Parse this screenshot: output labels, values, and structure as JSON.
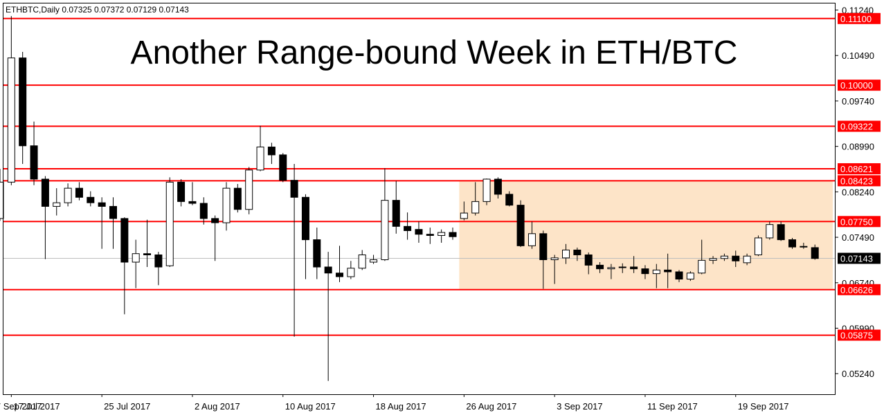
{
  "colors": {
    "level_line": "#ff0000",
    "range_box": "#fde4c8",
    "current_badge": "#000000",
    "candle_up_fill": "#ffffff",
    "candle_down_fill": "#000000",
    "candle_stroke": "#000000"
  },
  "chart_data": {
    "type": "candlestick",
    "symbol_info": "ETHBTC,Daily  0.07325 0.07372 0.07129 0.07143",
    "title": "Another Range-bound Week in ETH/BTC",
    "ylim": [
      0.049,
      0.1136
    ],
    "y_ticks": [
      "0.11240",
      "0.10490",
      "0.09740",
      "0.08990",
      "0.08240",
      "0.07490",
      "0.06740",
      "0.05990",
      "0.05240"
    ],
    "x_tick_labels": [
      "17 Jul 2017",
      "25 Jul 2017",
      "2 Aug 2017",
      "10 Aug 2017",
      "18 Aug 2017",
      "26 Aug 2017",
      "3 Sep 2017",
      "11 Sep 2017",
      "19 Sep 2017",
      "27 Sep 2017"
    ],
    "levels": [
      "0.11100",
      "0.10000",
      "0.09322",
      "0.08621",
      "0.08423",
      "0.07750",
      "0.06626",
      "0.05875"
    ],
    "current_price": "0.07143",
    "range_box": {
      "from": "26 Aug 2017",
      "to": "27 Sep 2017",
      "low": 0.0662,
      "high": 0.0843
    },
    "candles": [
      {
        "date": "16 Jul 2017",
        "o": 0.078,
        "h": 0.0862,
        "l": 0.0776,
        "c": 0.084
      },
      {
        "date": "17 Jul 2017",
        "o": 0.084,
        "h": 0.1114,
        "l": 0.0835,
        "c": 0.1045
      },
      {
        "date": "18 Jul 2017",
        "o": 0.1045,
        "h": 0.1055,
        "l": 0.087,
        "c": 0.09
      },
      {
        "date": "19 Jul 2017",
        "o": 0.09,
        "h": 0.094,
        "l": 0.0835,
        "c": 0.0845
      },
      {
        "date": "20 Jul 2017",
        "o": 0.0845,
        "h": 0.085,
        "l": 0.0713,
        "c": 0.08
      },
      {
        "date": "21 Jul 2017",
        "o": 0.08,
        "h": 0.083,
        "l": 0.0785,
        "c": 0.0806
      },
      {
        "date": "22 Jul 2017",
        "o": 0.0806,
        "h": 0.0838,
        "l": 0.08,
        "c": 0.083
      },
      {
        "date": "23 Jul 2017",
        "o": 0.083,
        "h": 0.084,
        "l": 0.081,
        "c": 0.0815
      },
      {
        "date": "24 Jul 2017",
        "o": 0.0815,
        "h": 0.0825,
        "l": 0.08,
        "c": 0.0806
      },
      {
        "date": "25 Jul 2017",
        "o": 0.0806,
        "h": 0.0815,
        "l": 0.073,
        "c": 0.08
      },
      {
        "date": "26 Jul 2017",
        "o": 0.08,
        "h": 0.0815,
        "l": 0.073,
        "c": 0.078
      },
      {
        "date": "27 Jul 2017",
        "o": 0.078,
        "h": 0.0782,
        "l": 0.0622,
        "c": 0.0708
      },
      {
        "date": "28 Jul 2017",
        "o": 0.0708,
        "h": 0.0745,
        "l": 0.0665,
        "c": 0.0722
      },
      {
        "date": "29 Jul 2017",
        "o": 0.0722,
        "h": 0.0778,
        "l": 0.07,
        "c": 0.072
      },
      {
        "date": "30 Jul 2017",
        "o": 0.072,
        "h": 0.0725,
        "l": 0.067,
        "c": 0.07
      },
      {
        "date": "31 Jul 2017",
        "o": 0.0702,
        "h": 0.0848,
        "l": 0.07,
        "c": 0.084
      },
      {
        "date": "1 Aug 2017",
        "o": 0.084,
        "h": 0.0845,
        "l": 0.08,
        "c": 0.0808
      },
      {
        "date": "2 Aug 2017",
        "o": 0.0808,
        "h": 0.084,
        "l": 0.0802,
        "c": 0.0805
      },
      {
        "date": "3 Aug 2017",
        "o": 0.0805,
        "h": 0.0815,
        "l": 0.077,
        "c": 0.078
      },
      {
        "date": "4 Aug 2017",
        "o": 0.078,
        "h": 0.0785,
        "l": 0.071,
        "c": 0.0773
      },
      {
        "date": "5 Aug 2017",
        "o": 0.0773,
        "h": 0.084,
        "l": 0.076,
        "c": 0.083
      },
      {
        "date": "6 Aug 2017",
        "o": 0.083,
        "h": 0.0837,
        "l": 0.079,
        "c": 0.0795
      },
      {
        "date": "7 Aug 2017",
        "o": 0.0795,
        "h": 0.0865,
        "l": 0.0787,
        "c": 0.086
      },
      {
        "date": "8 Aug 2017",
        "o": 0.086,
        "h": 0.0933,
        "l": 0.0858,
        "c": 0.0898
      },
      {
        "date": "9 Aug 2017",
        "o": 0.0898,
        "h": 0.0905,
        "l": 0.087,
        "c": 0.0885
      },
      {
        "date": "10 Aug 2017",
        "o": 0.0885,
        "h": 0.0888,
        "l": 0.084,
        "c": 0.0843
      },
      {
        "date": "11 Aug 2017",
        "o": 0.0843,
        "h": 0.087,
        "l": 0.0585,
        "c": 0.0815
      },
      {
        "date": "12 Aug 2017",
        "o": 0.0815,
        "h": 0.082,
        "l": 0.068,
        "c": 0.0745
      },
      {
        "date": "13 Aug 2017",
        "o": 0.0745,
        "h": 0.0765,
        "l": 0.068,
        "c": 0.07
      },
      {
        "date": "14 Aug 2017",
        "o": 0.07,
        "h": 0.0725,
        "l": 0.0512,
        "c": 0.069
      },
      {
        "date": "15 Aug 2017",
        "o": 0.069,
        "h": 0.0735,
        "l": 0.0675,
        "c": 0.0684
      },
      {
        "date": "16 Aug 2017",
        "o": 0.0684,
        "h": 0.071,
        "l": 0.068,
        "c": 0.0698
      },
      {
        "date": "17 Aug 2017",
        "o": 0.0698,
        "h": 0.0728,
        "l": 0.0695,
        "c": 0.072
      },
      {
        "date": "18 Aug 2017",
        "o": 0.0708,
        "h": 0.072,
        "l": 0.0705,
        "c": 0.0712
      },
      {
        "date": "19 Aug 2017",
        "o": 0.0712,
        "h": 0.0863,
        "l": 0.071,
        "c": 0.081
      },
      {
        "date": "20 Aug 2017",
        "o": 0.081,
        "h": 0.0842,
        "l": 0.0755,
        "c": 0.0767
      },
      {
        "date": "21 Aug 2017",
        "o": 0.0767,
        "h": 0.079,
        "l": 0.0745,
        "c": 0.076
      },
      {
        "date": "22 Aug 2017",
        "o": 0.0762,
        "h": 0.0775,
        "l": 0.074,
        "c": 0.0754
      },
      {
        "date": "23 Aug 2017",
        "o": 0.0754,
        "h": 0.0765,
        "l": 0.0738,
        "c": 0.0752
      },
      {
        "date": "24 Aug 2017",
        "o": 0.0752,
        "h": 0.0762,
        "l": 0.074,
        "c": 0.0757
      },
      {
        "date": "25 Aug 2017",
        "o": 0.0757,
        "h": 0.0765,
        "l": 0.0745,
        "c": 0.075
      },
      {
        "date": "26 Aug 2017",
        "o": 0.078,
        "h": 0.0808,
        "l": 0.0777,
        "c": 0.0789
      },
      {
        "date": "27 Aug 2017",
        "o": 0.0789,
        "h": 0.084,
        "l": 0.0785,
        "c": 0.0808
      },
      {
        "date": "28 Aug 2017",
        "o": 0.0808,
        "h": 0.0846,
        "l": 0.0802,
        "c": 0.0845
      },
      {
        "date": "29 Aug 2017",
        "o": 0.0845,
        "h": 0.0848,
        "l": 0.0813,
        "c": 0.082
      },
      {
        "date": "30 Aug 2017",
        "o": 0.082,
        "h": 0.0825,
        "l": 0.08,
        "c": 0.0802
      },
      {
        "date": "31 Aug 2017",
        "o": 0.0802,
        "h": 0.081,
        "l": 0.0733,
        "c": 0.0735
      },
      {
        "date": "1 Sep 2017",
        "o": 0.0735,
        "h": 0.0775,
        "l": 0.073,
        "c": 0.0755
      },
      {
        "date": "2 Sep 2017",
        "o": 0.0755,
        "h": 0.076,
        "l": 0.0664,
        "c": 0.0712
      },
      {
        "date": "3 Sep 2017",
        "o": 0.0712,
        "h": 0.072,
        "l": 0.0672,
        "c": 0.0715
      },
      {
        "date": "4 Sep 2017",
        "o": 0.0715,
        "h": 0.0738,
        "l": 0.0705,
        "c": 0.0728
      },
      {
        "date": "5 Sep 2017",
        "o": 0.0728,
        "h": 0.0732,
        "l": 0.071,
        "c": 0.072
      },
      {
        "date": "6 Sep 2017",
        "o": 0.072,
        "h": 0.0724,
        "l": 0.0688,
        "c": 0.0703
      },
      {
        "date": "7 Sep 2017",
        "o": 0.0703,
        "h": 0.0708,
        "l": 0.069,
        "c": 0.0697
      },
      {
        "date": "8 Sep 2017",
        "o": 0.0697,
        "h": 0.0705,
        "l": 0.068,
        "c": 0.0699
      },
      {
        "date": "9 Sep 2017",
        "o": 0.0699,
        "h": 0.0706,
        "l": 0.069,
        "c": 0.07
      },
      {
        "date": "10 Sep 2017",
        "o": 0.07,
        "h": 0.0718,
        "l": 0.069,
        "c": 0.0697
      },
      {
        "date": "11 Sep 2017",
        "o": 0.0697,
        "h": 0.0703,
        "l": 0.068,
        "c": 0.0689
      },
      {
        "date": "12 Sep 2017",
        "o": 0.0689,
        "h": 0.0705,
        "l": 0.0665,
        "c": 0.0695
      },
      {
        "date": "13 Sep 2017",
        "o": 0.0695,
        "h": 0.0722,
        "l": 0.0665,
        "c": 0.0692
      },
      {
        "date": "14 Sep 2017",
        "o": 0.0692,
        "h": 0.0695,
        "l": 0.0675,
        "c": 0.068
      },
      {
        "date": "15 Sep 2017",
        "o": 0.068,
        "h": 0.0693,
        "l": 0.0677,
        "c": 0.069
      },
      {
        "date": "16 Sep 2017",
        "o": 0.069,
        "h": 0.0745,
        "l": 0.0688,
        "c": 0.0711
      },
      {
        "date": "17 Sep 2017",
        "o": 0.0711,
        "h": 0.0718,
        "l": 0.0705,
        "c": 0.0714
      },
      {
        "date": "18 Sep 2017",
        "o": 0.0714,
        "h": 0.0722,
        "l": 0.071,
        "c": 0.0718
      },
      {
        "date": "19 Sep 2017",
        "o": 0.0718,
        "h": 0.0727,
        "l": 0.07,
        "c": 0.071
      },
      {
        "date": "20 Sep 2017",
        "o": 0.0707,
        "h": 0.0722,
        "l": 0.0703,
        "c": 0.0718
      },
      {
        "date": "21 Sep 2017",
        "o": 0.072,
        "h": 0.0752,
        "l": 0.0718,
        "c": 0.0748
      },
      {
        "date": "22 Sep 2017",
        "o": 0.0748,
        "h": 0.0775,
        "l": 0.0745,
        "c": 0.077
      },
      {
        "date": "23 Sep 2017",
        "o": 0.077,
        "h": 0.0775,
        "l": 0.0743,
        "c": 0.0745
      },
      {
        "date": "24 Sep 2017",
        "o": 0.0745,
        "h": 0.0748,
        "l": 0.073,
        "c": 0.0733
      },
      {
        "date": "25 Sep 2017",
        "o": 0.0733,
        "h": 0.074,
        "l": 0.073,
        "c": 0.0734
      },
      {
        "date": "26 Sep 2017",
        "o": 0.0732,
        "h": 0.0737,
        "l": 0.0712,
        "c": 0.0714
      }
    ]
  }
}
